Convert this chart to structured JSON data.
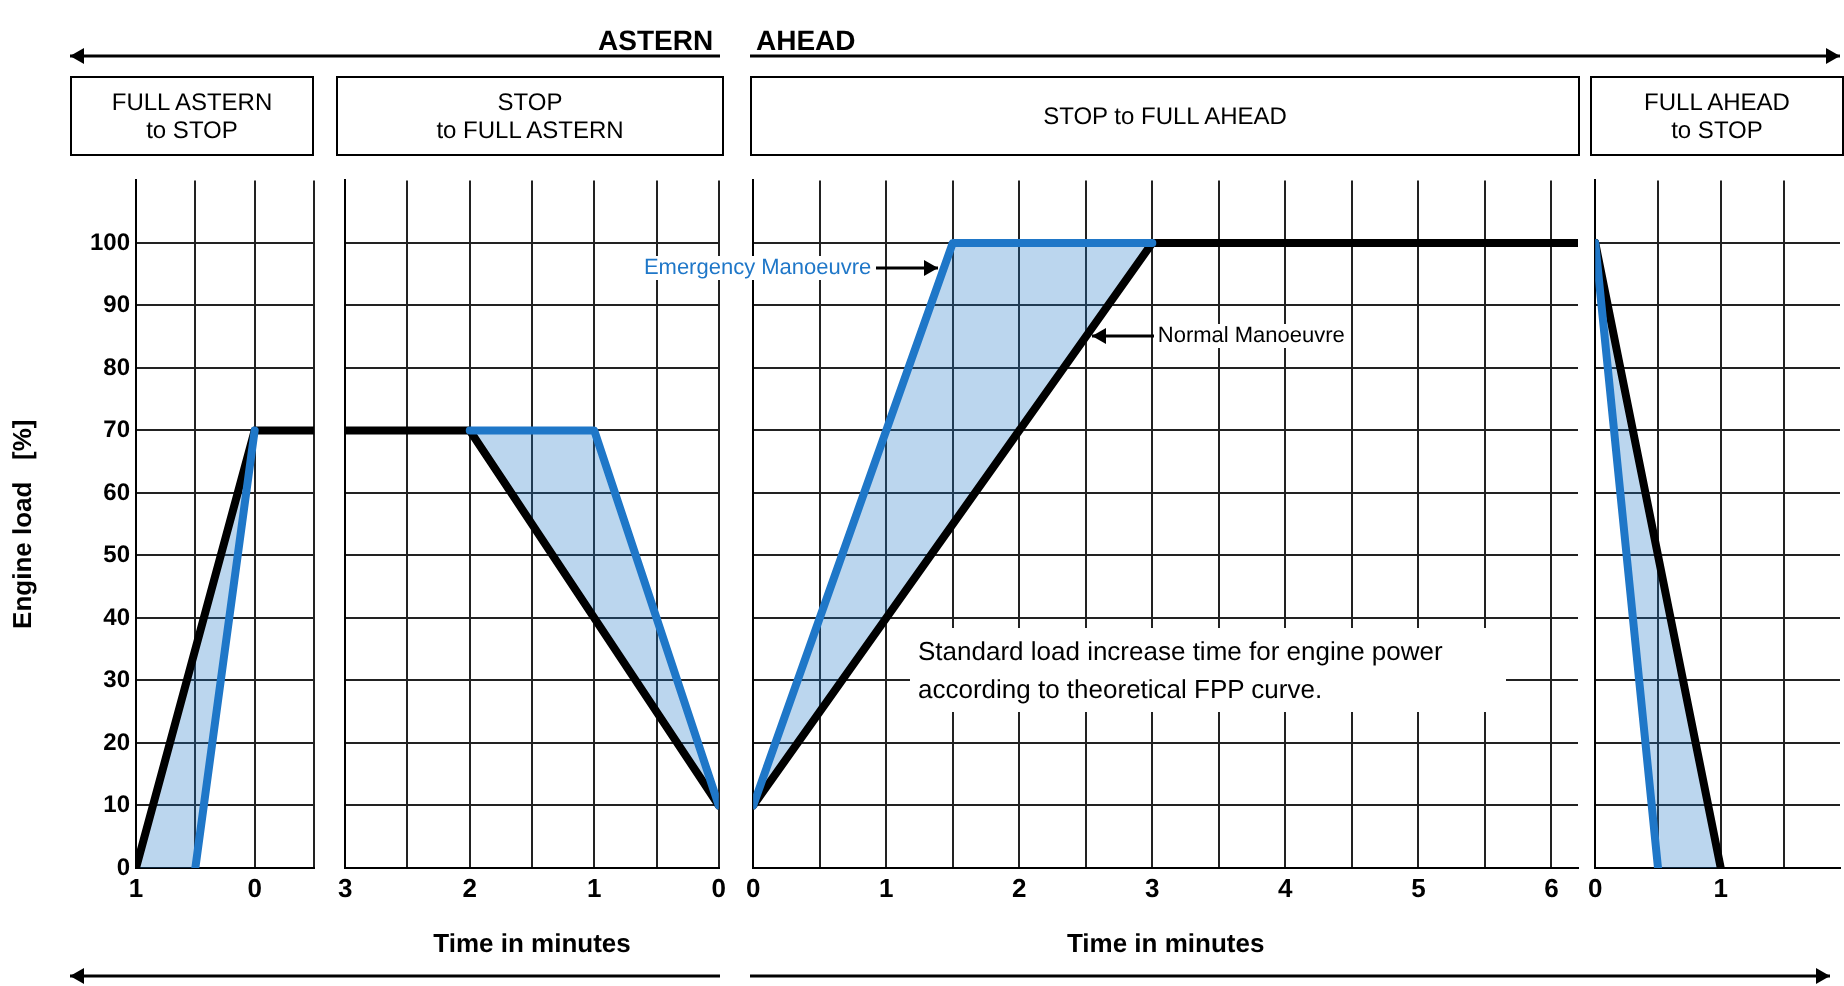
{
  "chart_data": [
    {
      "type": "line",
      "title": "FULL ASTERN\nto STOP",
      "ylabel": "Engine load   [%]",
      "xlim": [
        1,
        -0.5
      ],
      "xticks": [
        1,
        {
          "value": 0.5,
          "label": null
        },
        0,
        {
          "value": -0.5,
          "label": null
        }
      ],
      "ylim": [
        0,
        110
      ],
      "yticks": [
        0,
        10,
        20,
        30,
        40,
        50,
        60,
        70,
        80,
        90,
        100
      ],
      "grid": true,
      "series": [
        {
          "color": "#1f77c8",
          "x": [
            1,
            0.5,
            0
          ],
          "values": [
            null,
            0,
            70
          ],
          "lower": [
            0,
            0,
            70
          ],
          "upper": [
            0,
            35,
            70
          ]
        },
        {
          "color": "#000000",
          "x": [
            1,
            0,
            -0.5
          ],
          "values": [
            0,
            70,
            70
          ]
        }
      ]
    },
    {
      "type": "line",
      "title": "STOP\nto FULL ASTERN",
      "xlabel": "Time in minutes",
      "annotations": [
        "ASTERN"
      ],
      "xlim": [
        3,
        0
      ],
      "xticks": [
        3,
        {
          "value": 2.5,
          "label": null
        },
        2,
        {
          "value": 1.5,
          "label": null
        },
        1,
        {
          "value": 0.5,
          "label": null
        },
        0
      ],
      "ylim": [
        0,
        110
      ],
      "yticks": [
        0,
        10,
        20,
        30,
        40,
        50,
        60,
        70,
        80,
        90,
        100
      ],
      "grid": true,
      "tick_labels": "x",
      "series": [
        {
          "color": "#1f77c8",
          "x": [
            2,
            1,
            0
          ],
          "values": [
            70,
            70,
            10
          ],
          "lower": [
            70,
            40,
            10
          ],
          "upper": [
            70,
            70,
            10
          ]
        },
        {
          "color": "#000000",
          "x": [
            3,
            2,
            0
          ],
          "values": [
            70,
            70,
            10
          ]
        }
      ]
    },
    {
      "type": "line",
      "title": "STOP to FULL AHEAD",
      "xlabel": "Time in minutes",
      "annotations": [
        "AHEAD",
        "Standard load increase time for engine power according to theoretical FPP curve."
      ],
      "xlim": [
        0,
        6.2
      ],
      "xticks": [
        0,
        {
          "value": 0.5,
          "label": null
        },
        1,
        {
          "value": 1.5,
          "label": null
        },
        2,
        {
          "value": 2.5,
          "label": null
        },
        3,
        {
          "value": 3.5,
          "label": null
        },
        4,
        {
          "value": 4.5,
          "label": null
        },
        5,
        {
          "value": 5.5,
          "label": null
        },
        6
      ],
      "ylim": [
        0,
        110
      ],
      "yticks": [
        0,
        10,
        20,
        30,
        40,
        50,
        60,
        70,
        80,
        90,
        100
      ],
      "grid": true,
      "legend": "top",
      "tick_labels": "x",
      "series": [
        {
          "name": "Emergency Manoeuvre",
          "color": "#1f77c8",
          "x": [
            0,
            1.5,
            3
          ],
          "values": [
            10,
            100,
            100
          ],
          "lower": [
            10,
            55,
            100
          ],
          "upper": [
            10,
            100,
            100
          ]
        },
        {
          "name": "Normal Manoeuvre",
          "color": "#000000",
          "x": [
            0,
            3,
            6.2
          ],
          "values": [
            10,
            100,
            100
          ]
        }
      ]
    },
    {
      "type": "line",
      "title": "FULL AHEAD\nto STOP",
      "xlim": [
        0,
        1.95
      ],
      "xticks": [
        0,
        {
          "value": 0.5,
          "label": null
        },
        1,
        {
          "value": 1.5,
          "label": null
        }
      ],
      "ylim": [
        0,
        110
      ],
      "yticks": [
        0,
        10,
        20,
        30,
        40,
        50,
        60,
        70,
        80,
        90,
        100
      ],
      "grid": true,
      "tick_labels": "x",
      "series": [
        {
          "color": "#1f77c8",
          "x": [
            0,
            0.5,
            1
          ],
          "values": [
            100,
            0,
            null
          ],
          "lower": [
            100,
            0,
            0
          ],
          "upper": [
            100,
            50,
            0
          ]
        },
        {
          "color": "#000000",
          "x": [
            0,
            1
          ],
          "values": [
            100,
            0
          ]
        }
      ]
    }
  ]
}
